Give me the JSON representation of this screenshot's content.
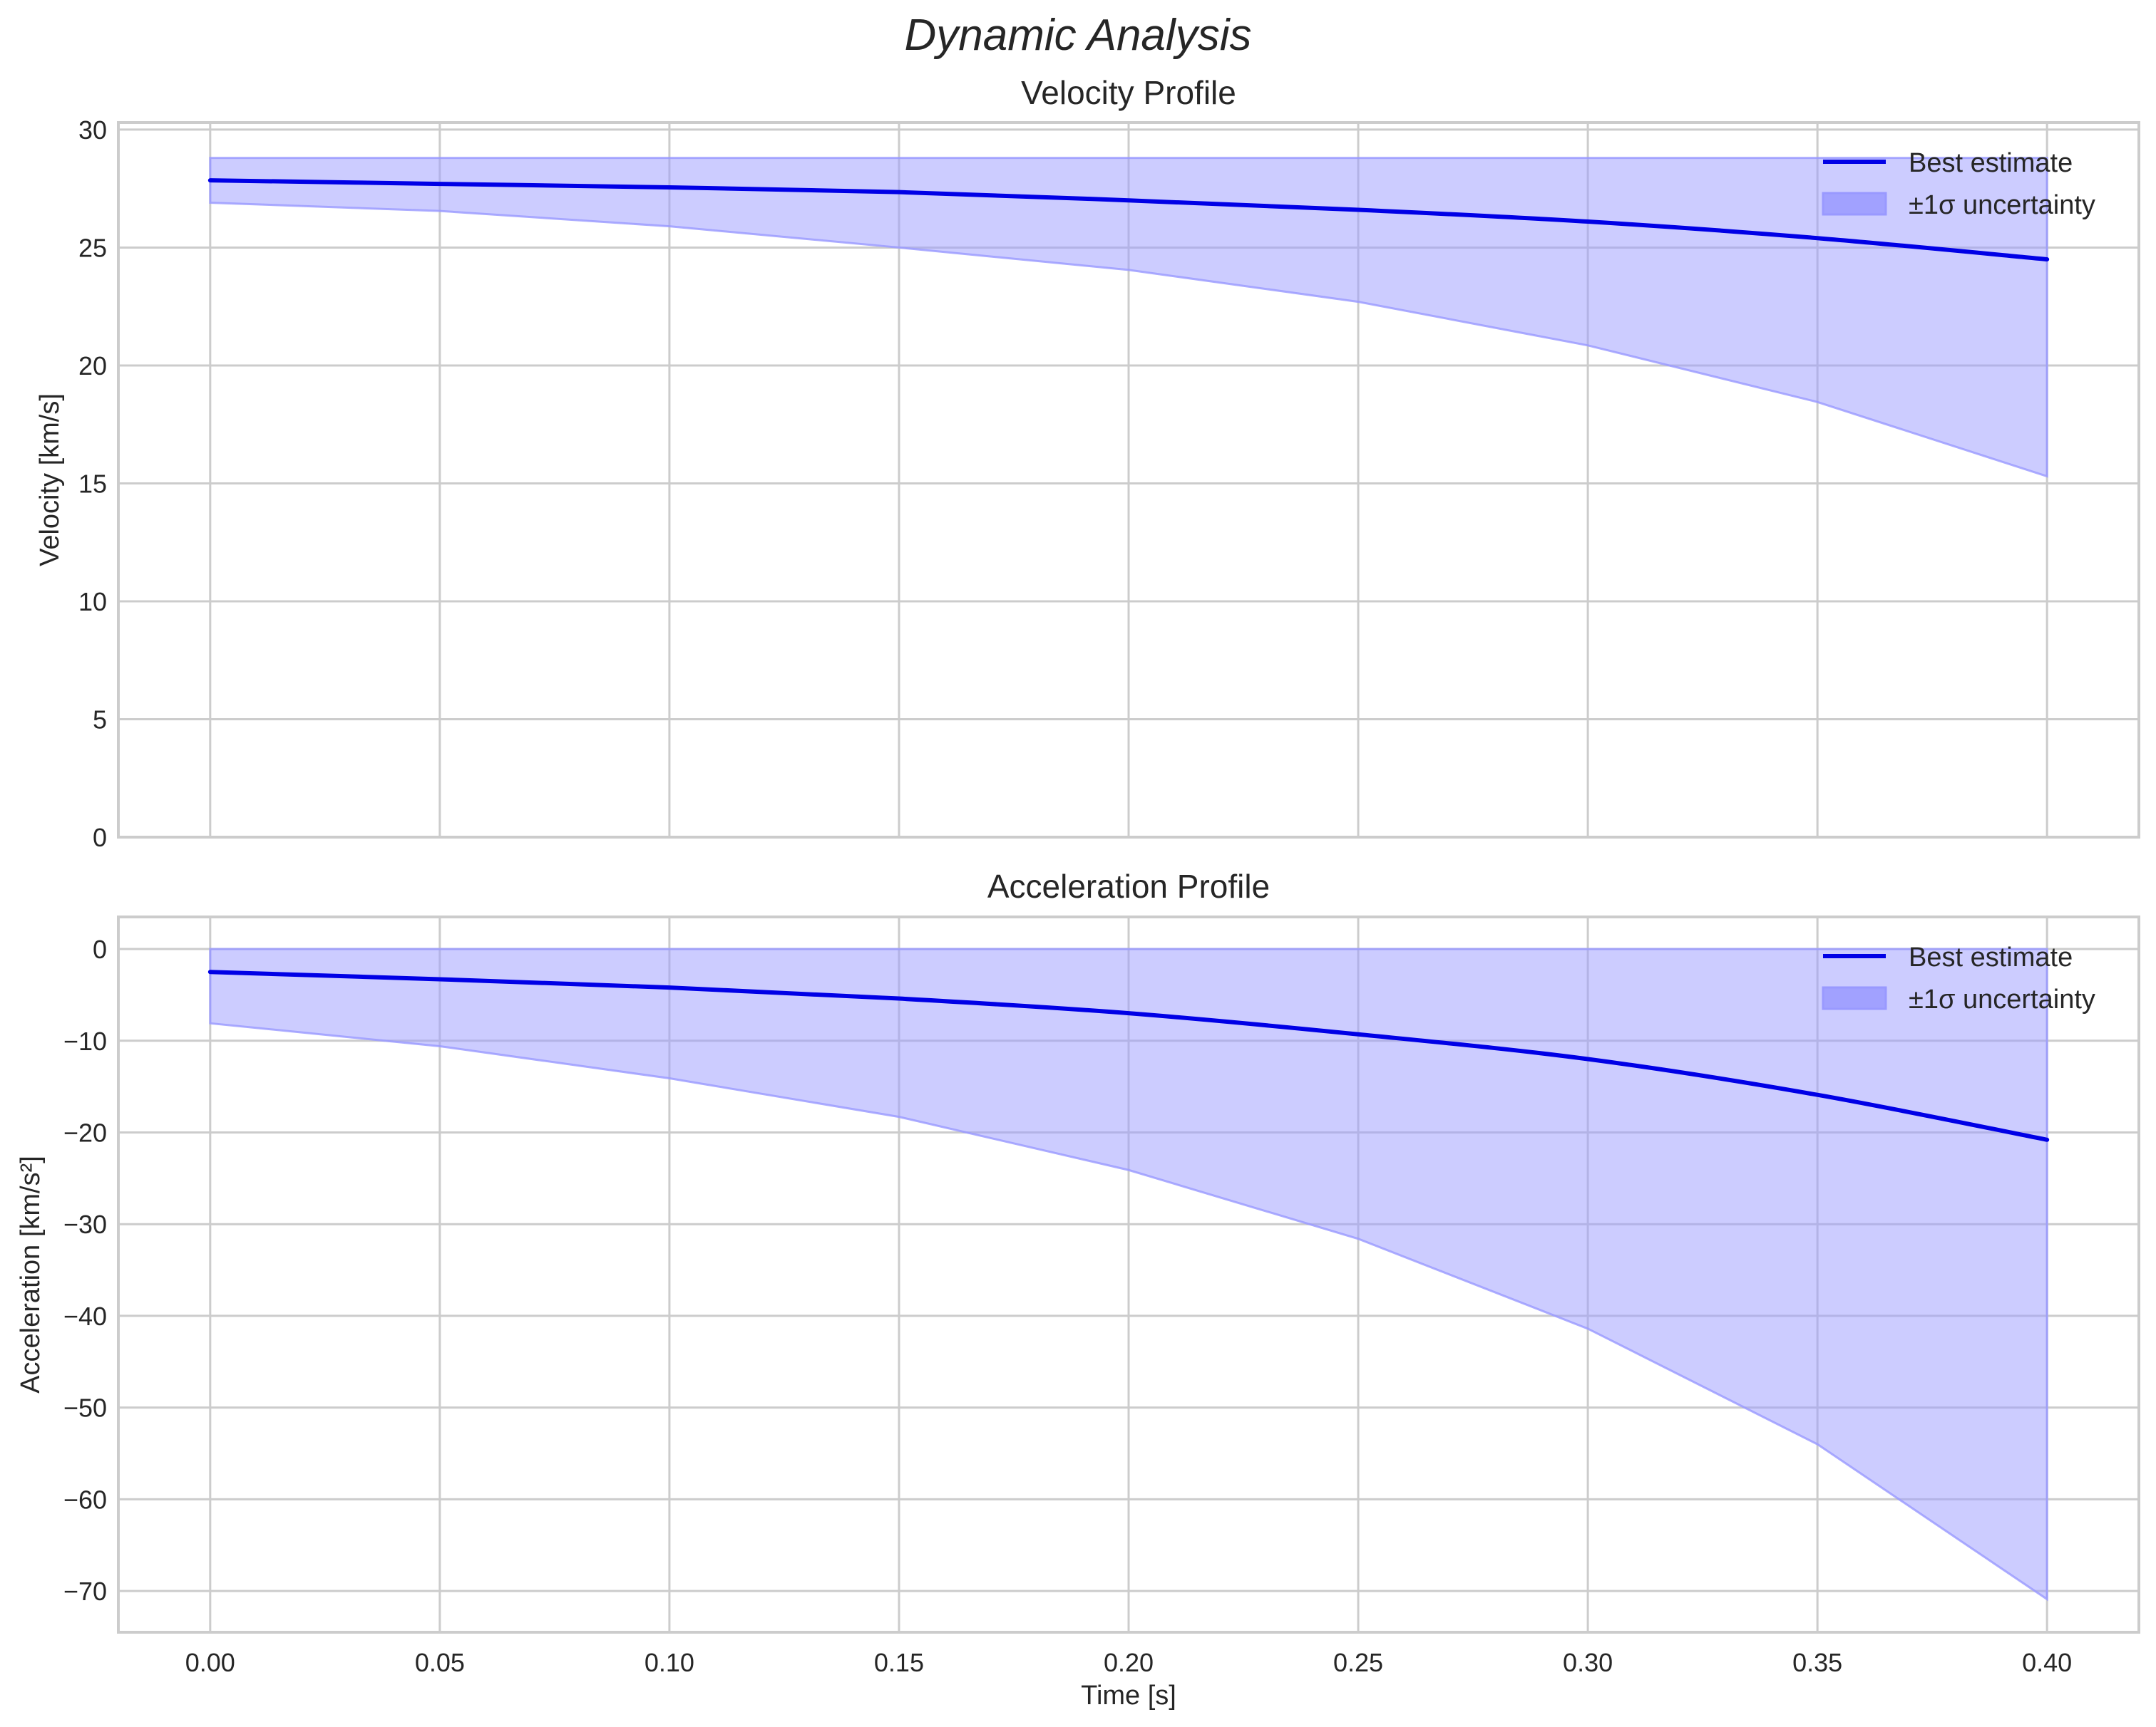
{
  "figure": {
    "suptitle": "Dynamic Analysis",
    "xlabel": "Time [s]"
  },
  "legend": {
    "line_label": "Best estimate",
    "band_label": "±1σ uncertainty"
  },
  "colors": {
    "line": "#0000e6",
    "band_fill": "#9999ff",
    "band_alpha": 0.5,
    "grid": "#cccccc",
    "axis_edge": "#cccccc",
    "text": "#262626"
  },
  "chart_data": [
    {
      "type": "line",
      "title": "Velocity Profile",
      "xlabel": "",
      "ylabel": "Velocity [km/s]",
      "xlim": [
        -0.02,
        0.42
      ],
      "ylim": [
        0,
        30.3
      ],
      "xticks": [
        0.0,
        0.05,
        0.1,
        0.15,
        0.2,
        0.25,
        0.3,
        0.35,
        0.4
      ],
      "xtick_labels": [
        "0.00",
        "0.05",
        "0.10",
        "0.15",
        "0.20",
        "0.25",
        "0.30",
        "0.35",
        "0.40"
      ],
      "yticks": [
        0,
        5,
        10,
        15,
        20,
        25,
        30
      ],
      "ytick_labels": [
        "0",
        "5",
        "10",
        "15",
        "20",
        "25",
        "30"
      ],
      "grid": true,
      "legend_position": "upper right",
      "x": [
        0.0,
        0.05,
        0.1,
        0.15,
        0.2,
        0.25,
        0.3,
        0.35,
        0.4
      ],
      "series": [
        {
          "name": "Best estimate",
          "kind": "line",
          "values": [
            27.85,
            27.7,
            27.55,
            27.35,
            27.0,
            26.6,
            26.1,
            25.4,
            24.5
          ]
        },
        {
          "name": "±1σ uncertainty",
          "kind": "band",
          "lower": [
            26.9,
            26.55,
            25.9,
            25.0,
            24.05,
            22.7,
            20.85,
            18.45,
            15.3
          ],
          "upper": [
            28.8,
            28.8,
            28.8,
            28.8,
            28.8,
            28.8,
            28.8,
            28.8,
            28.8
          ]
        }
      ]
    },
    {
      "type": "line",
      "title": "Acceleration Profile",
      "xlabel": "Time [s]",
      "ylabel": "Acceleration [km/s²]",
      "xlim": [
        -0.02,
        0.42
      ],
      "ylim": [
        -74.5,
        3.5
      ],
      "xticks": [
        0.0,
        0.05,
        0.1,
        0.15,
        0.2,
        0.25,
        0.3,
        0.35,
        0.4
      ],
      "xtick_labels": [
        "0.00",
        "0.05",
        "0.10",
        "0.15",
        "0.20",
        "0.25",
        "0.30",
        "0.35",
        "0.40"
      ],
      "yticks": [
        0,
        -10,
        -20,
        -30,
        -40,
        -50,
        -60,
        -70
      ],
      "ytick_labels": [
        "0",
        "−10",
        "−20",
        "−30",
        "−40",
        "−50",
        "−60",
        "−70"
      ],
      "grid": true,
      "legend_position": "upper right",
      "x": [
        0.0,
        0.05,
        0.1,
        0.15,
        0.2,
        0.25,
        0.3,
        0.35,
        0.4
      ],
      "series": [
        {
          "name": "Best estimate",
          "kind": "line",
          "values": [
            -2.5,
            -3.3,
            -4.2,
            -5.4,
            -7.0,
            -9.3,
            -12.0,
            -15.9,
            -20.8
          ]
        },
        {
          "name": "±1σ uncertainty",
          "kind": "band",
          "lower": [
            -8.1,
            -10.6,
            -14.1,
            -18.3,
            -24.1,
            -31.6,
            -41.4,
            -54.0,
            -70.9
          ],
          "upper": [
            0,
            0,
            0,
            0,
            0,
            0,
            0,
            0,
            0
          ]
        }
      ]
    }
  ]
}
